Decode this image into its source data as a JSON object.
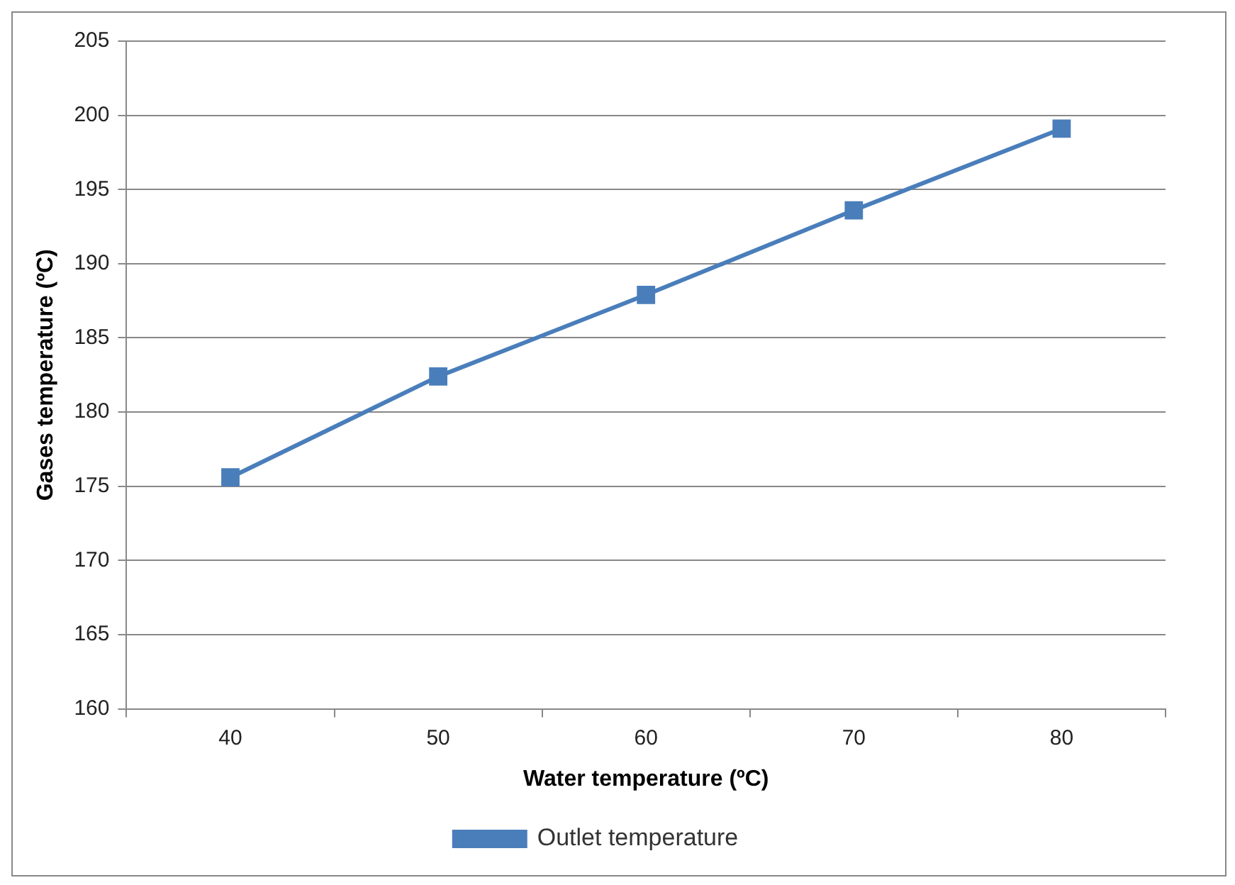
{
  "chart_data": {
    "type": "line",
    "xlabel": "Water temperature (ºC)",
    "ylabel": "Gases temperature (ºC)",
    "categories": [
      "40",
      "50",
      "60",
      "70",
      "80"
    ],
    "series": [
      {
        "name": "Outlet temperature",
        "color": "#4a7ebb",
        "values": [
          175.6,
          182.4,
          187.9,
          193.6,
          199.1
        ]
      }
    ],
    "ylim": [
      160,
      205
    ],
    "yticks": [
      160,
      165,
      170,
      175,
      180,
      185,
      190,
      195,
      200,
      205
    ],
    "grid": "y",
    "legend": "bottom",
    "marker": "square",
    "line_style": "solid"
  }
}
